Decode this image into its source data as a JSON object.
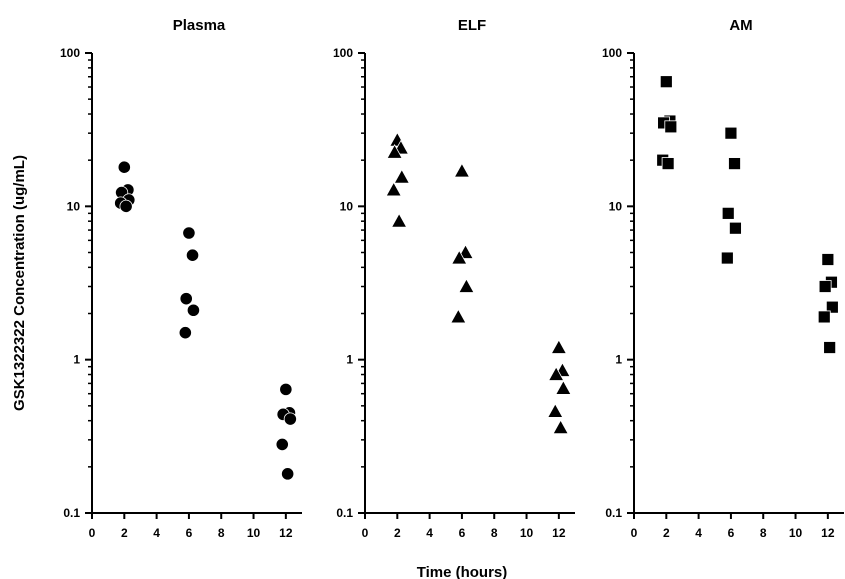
{
  "figure": {
    "ylabel": "GSK1322322  Concentration  (ug/mL)",
    "xlabel": "Time  (hours)"
  },
  "chart_data": [
    {
      "type": "scatter",
      "title": "Plasma",
      "marker": "circle",
      "xlim": [
        0,
        13
      ],
      "xticks": [
        0,
        2,
        4,
        6,
        8,
        10,
        12
      ],
      "ylim": [
        0.1,
        100
      ],
      "yscale": "log",
      "yticks": [
        0.1,
        1,
        10,
        100
      ],
      "ytick_labels": [
        "0.1",
        "1",
        "10",
        "100"
      ],
      "points": [
        {
          "x": 2,
          "y": 18
        },
        {
          "x": 2,
          "y": 12.8
        },
        {
          "x": 2,
          "y": 12.3
        },
        {
          "x": 2,
          "y": 11
        },
        {
          "x": 2,
          "y": 10.5
        },
        {
          "x": 2,
          "y": 10
        },
        {
          "x": 6,
          "y": 6.7
        },
        {
          "x": 6,
          "y": 4.8
        },
        {
          "x": 6,
          "y": 2.5
        },
        {
          "x": 6,
          "y": 2.1
        },
        {
          "x": 6,
          "y": 1.5
        },
        {
          "x": 12,
          "y": 0.64
        },
        {
          "x": 12,
          "y": 0.45
        },
        {
          "x": 12,
          "y": 0.44
        },
        {
          "x": 12,
          "y": 0.41
        },
        {
          "x": 12,
          "y": 0.28
        },
        {
          "x": 12,
          "y": 0.18
        }
      ]
    },
    {
      "type": "scatter",
      "title": "ELF",
      "marker": "triangle",
      "xlim": [
        0,
        13
      ],
      "xticks": [
        0,
        2,
        4,
        6,
        8,
        10,
        12
      ],
      "ylim": [
        0.1,
        100
      ],
      "yscale": "log",
      "yticks": [
        0.1,
        1,
        10,
        100
      ],
      "ytick_labels": [
        "0.1",
        "1",
        "10",
        "100"
      ],
      "points": [
        {
          "x": 2,
          "y": 27
        },
        {
          "x": 2,
          "y": 24
        },
        {
          "x": 2,
          "y": 22.5
        },
        {
          "x": 2,
          "y": 15.5
        },
        {
          "x": 2,
          "y": 12.8
        },
        {
          "x": 2,
          "y": 8
        },
        {
          "x": 6,
          "y": 17
        },
        {
          "x": 6,
          "y": 5
        },
        {
          "x": 6,
          "y": 4.6
        },
        {
          "x": 6,
          "y": 3
        },
        {
          "x": 6,
          "y": 1.9
        },
        {
          "x": 12,
          "y": 1.2
        },
        {
          "x": 12,
          "y": 0.85
        },
        {
          "x": 12,
          "y": 0.8
        },
        {
          "x": 12,
          "y": 0.65
        },
        {
          "x": 12,
          "y": 0.46
        },
        {
          "x": 12,
          "y": 0.36
        }
      ]
    },
    {
      "type": "scatter",
      "title": "AM",
      "marker": "square",
      "xlim": [
        0,
        13
      ],
      "xticks": [
        0,
        2,
        4,
        6,
        8,
        10,
        12
      ],
      "ylim": [
        0.1,
        100
      ],
      "yscale": "log",
      "yticks": [
        0.1,
        1,
        10,
        100
      ],
      "ytick_labels": [
        "0.1",
        "1",
        "10",
        "100"
      ],
      "points": [
        {
          "x": 2,
          "y": 65
        },
        {
          "x": 2,
          "y": 36
        },
        {
          "x": 2,
          "y": 35
        },
        {
          "x": 2,
          "y": 33
        },
        {
          "x": 2,
          "y": 20
        },
        {
          "x": 2,
          "y": 19
        },
        {
          "x": 6,
          "y": 30
        },
        {
          "x": 6,
          "y": 19
        },
        {
          "x": 6,
          "y": 9
        },
        {
          "x": 6,
          "y": 7.2
        },
        {
          "x": 6,
          "y": 4.6
        },
        {
          "x": 12,
          "y": 4.5
        },
        {
          "x": 12,
          "y": 3.2
        },
        {
          "x": 12,
          "y": 3
        },
        {
          "x": 12,
          "y": 2.2
        },
        {
          "x": 12,
          "y": 1.9
        },
        {
          "x": 12,
          "y": 1.2
        }
      ]
    }
  ]
}
